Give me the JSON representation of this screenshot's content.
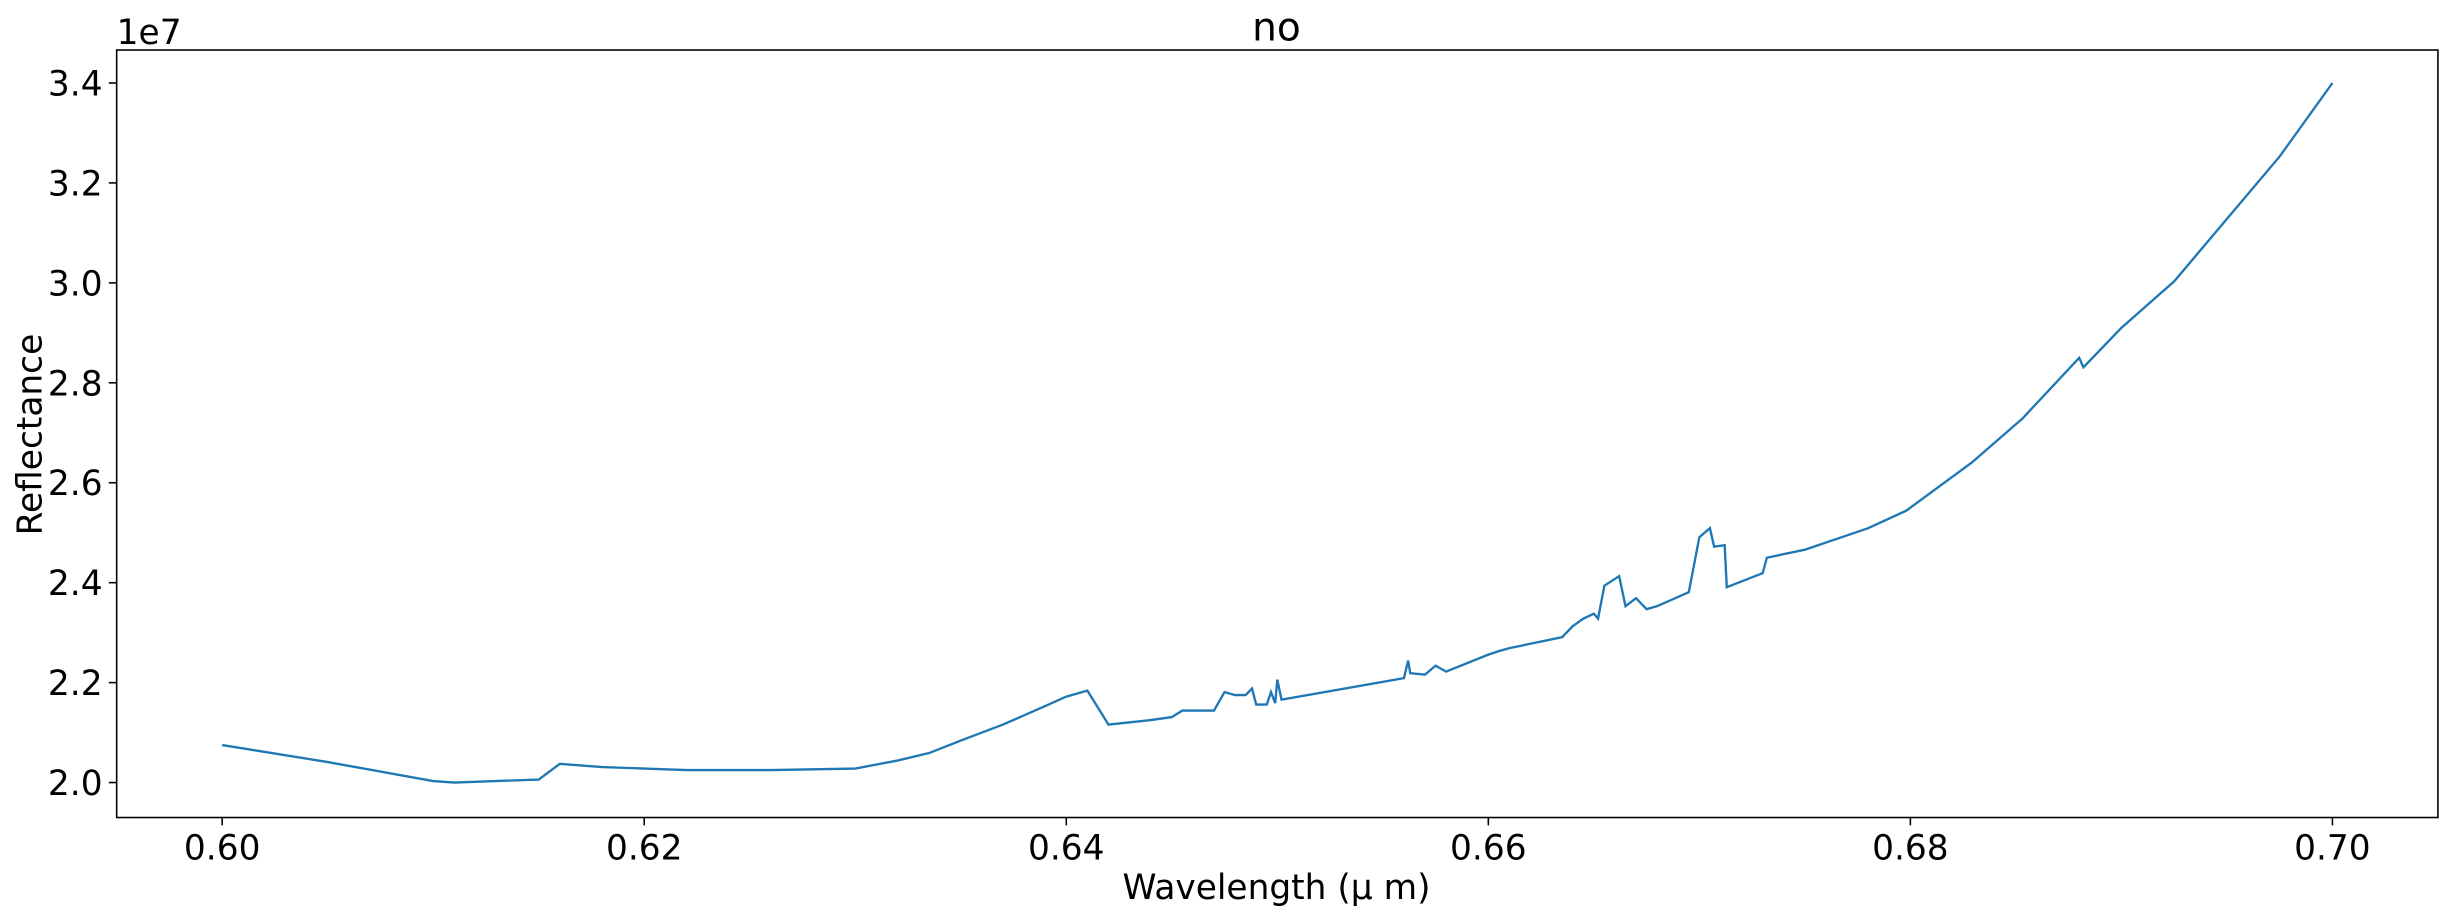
{
  "chart_data": {
    "type": "line",
    "title": "no",
    "x_label": "Wavelength (μ m)",
    "y_label": "Reflectance",
    "y_offset_label": "1e7",
    "xlim": [
      0.595,
      0.705
    ],
    "ylim": [
      19300000,
      34660000
    ],
    "xticks": [
      {
        "value": 0.6,
        "label": "0.60"
      },
      {
        "value": 0.62,
        "label": "0.62"
      },
      {
        "value": 0.64,
        "label": "0.64"
      },
      {
        "value": 0.66,
        "label": "0.66"
      },
      {
        "value": 0.68,
        "label": "0.68"
      },
      {
        "value": 0.7,
        "label": "0.70"
      }
    ],
    "yticks": [
      {
        "value": 20000000,
        "label": "2.0"
      },
      {
        "value": 22000000,
        "label": "2.2"
      },
      {
        "value": 24000000,
        "label": "2.4"
      },
      {
        "value": 26000000,
        "label": "2.6"
      },
      {
        "value": 28000000,
        "label": "2.8"
      },
      {
        "value": 30000000,
        "label": "3.0"
      },
      {
        "value": 32000000,
        "label": "3.2"
      },
      {
        "value": 34000000,
        "label": "3.4"
      }
    ],
    "series": [
      {
        "color": "#1f77b4",
        "x": [
          0.6,
          0.605,
          0.61,
          0.611,
          0.615,
          0.616,
          0.618,
          0.62,
          0.622,
          0.626,
          0.63,
          0.632,
          0.6335,
          0.635,
          0.637,
          0.639,
          0.64,
          0.641,
          0.642,
          0.644,
          0.645,
          0.6455,
          0.647,
          0.6475,
          0.648,
          0.6485,
          0.6488,
          0.649,
          0.6495,
          0.6497,
          0.6499,
          0.65,
          0.6502,
          0.656,
          0.6562,
          0.6563,
          0.657,
          0.6575,
          0.658,
          0.66,
          0.6605,
          0.661,
          0.6635,
          0.664,
          0.6645,
          0.665,
          0.6652,
          0.6655,
          0.6662,
          0.6665,
          0.667,
          0.6675,
          0.668,
          0.6695,
          0.67,
          0.6705,
          0.6707,
          0.6712,
          0.6713,
          0.673,
          0.6732,
          0.675,
          0.678,
          0.6798,
          0.6829,
          0.6853,
          0.688,
          0.6882,
          0.69,
          0.6925,
          0.695,
          0.6975,
          0.7
        ],
        "values": [
          20750000,
          20410000,
          20030000,
          20000000,
          20060000,
          20375000,
          20310000,
          20280000,
          20250000,
          20250000,
          20280000,
          20440000,
          20590000,
          20840000,
          21160000,
          21530000,
          21720000,
          21840000,
          21160000,
          21250000,
          21310000,
          21440000,
          21440000,
          21810000,
          21750000,
          21750000,
          21880000,
          21560000,
          21560000,
          21810000,
          21590000,
          22060000,
          21660000,
          22090000,
          22440000,
          22190000,
          22160000,
          22340000,
          22220000,
          22560000,
          22630000,
          22690000,
          22910000,
          23130000,
          23280000,
          23380000,
          23280000,
          23940000,
          24130000,
          23530000,
          23690000,
          23470000,
          23530000,
          23810000,
          24910000,
          25090000,
          24720000,
          24750000,
          23910000,
          24190000,
          24500000,
          24660000,
          25090000,
          25440000,
          26400000,
          27280000,
          28500000,
          28310000,
          29100000,
          30030000,
          31280000,
          32530000,
          34000000
        ]
      }
    ]
  }
}
